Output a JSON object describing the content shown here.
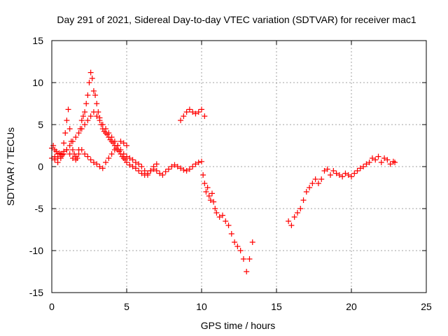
{
  "chart_data": {
    "type": "scatter",
    "title": "Day 291 of 2021, Sidereal Day-to-day VTEC variation (SDTVAR) for receiver mac1",
    "xlabel": "GPS time / hours",
    "ylabel": "SDTVAR / TECUs",
    "xlim": [
      0,
      25
    ],
    "ylim": [
      -15,
      15
    ],
    "xticks": [
      0,
      5,
      10,
      15,
      20,
      25
    ],
    "yticks": [
      -15,
      -10,
      -5,
      0,
      5,
      10,
      15
    ],
    "xtick_labels": [
      "0",
      "5",
      "10",
      "15",
      "20",
      "25"
    ],
    "ytick_labels": [
      "-15",
      "-10",
      "-5",
      "0",
      "5",
      "10",
      "15"
    ],
    "grid": true,
    "marker": "+",
    "color": "#ff0000",
    "series": [
      {
        "name": "mac1",
        "x": [
          0.0,
          0.1,
          0.2,
          0.3,
          0.4,
          0.5,
          0.6,
          0.7,
          0.8,
          0.9,
          1.0,
          1.1,
          1.2,
          1.3,
          1.4,
          1.5,
          1.6,
          1.7,
          1.8,
          1.9,
          2.0,
          2.1,
          2.2,
          2.3,
          2.4,
          2.5,
          2.6,
          2.7,
          2.8,
          2.9,
          3.0,
          3.1,
          3.2,
          3.3,
          3.4,
          3.5,
          3.6,
          3.7,
          3.8,
          3.9,
          4.0,
          4.1,
          4.2,
          4.3,
          4.4,
          4.5,
          4.6,
          4.7,
          4.8,
          4.9,
          5.0,
          5.2,
          5.4,
          5.6,
          5.8,
          6.0,
          6.2,
          6.4,
          6.6,
          6.8,
          7.0,
          7.2,
          7.4,
          7.6,
          7.8,
          8.0,
          8.2,
          8.4,
          8.6,
          8.8,
          9.0,
          9.2,
          9.4,
          9.6,
          9.8,
          10.0,
          10.1,
          10.2,
          10.3,
          10.4,
          10.5,
          10.6,
          10.7,
          10.8,
          10.9,
          11.0,
          11.2,
          11.4,
          11.6,
          11.8,
          12.0,
          12.2,
          12.4,
          12.6,
          12.8,
          13.0,
          13.2,
          13.4,
          0.0,
          0.2,
          0.4,
          0.6,
          0.8,
          1.0,
          1.2,
          1.4,
          1.6,
          1.8,
          2.0,
          2.2,
          2.4,
          2.6,
          2.8,
          3.0,
          3.2,
          3.4,
          3.6,
          3.8,
          4.0,
          4.2,
          4.4,
          4.6,
          4.8,
          5.0,
          5.2,
          5.4,
          5.6,
          5.8,
          6.0,
          6.2,
          6.4,
          6.6,
          6.8,
          7.0,
          0.2,
          0.4,
          0.6,
          0.8,
          1.0,
          1.2,
          1.4,
          1.6,
          1.8,
          2.0,
          2.2,
          2.4,
          2.6,
          2.8,
          3.0,
          3.2,
          3.4,
          3.6,
          3.8,
          4.0,
          4.2,
          4.4,
          4.6,
          4.8,
          5.0,
          8.6,
          8.8,
          9.0,
          9.2,
          9.4,
          9.6,
          9.8,
          10.0,
          10.2,
          15.8,
          16.0,
          16.2,
          16.4,
          16.6,
          16.8,
          17.0,
          17.2,
          17.4,
          17.6,
          17.8,
          18.0,
          18.2,
          18.4,
          18.6,
          18.8,
          19.0,
          19.2,
          19.4,
          19.6,
          19.8,
          20.0,
          20.2,
          20.4,
          20.6,
          20.8,
          21.0,
          21.2,
          21.4,
          21.6,
          21.8,
          22.0,
          22.2,
          22.4,
          22.6,
          22.8,
          22.9
        ],
        "y": [
          2.2,
          2.5,
          2.0,
          1.8,
          1.5,
          1.6,
          1.2,
          1.4,
          2.8,
          4.0,
          5.5,
          6.8,
          4.5,
          3.0,
          2.0,
          1.5,
          1.2,
          1.0,
          2.0,
          4.5,
          5.5,
          6.0,
          6.5,
          7.5,
          8.5,
          10.0,
          11.2,
          10.5,
          9.0,
          8.5,
          7.5,
          6.5,
          5.8,
          5.0,
          4.5,
          4.2,
          4.0,
          3.8,
          3.5,
          3.2,
          3.0,
          2.8,
          2.5,
          2.2,
          2.0,
          1.8,
          1.5,
          1.2,
          1.0,
          0.8,
          0.5,
          0.2,
          0.0,
          -0.2,
          -0.5,
          -0.8,
          -1.0,
          -0.8,
          -0.5,
          -0.3,
          -0.5,
          -0.8,
          -1.0,
          -0.6,
          -0.3,
          0.0,
          0.2,
          0.0,
          -0.2,
          -0.4,
          -0.5,
          -0.3,
          0.0,
          0.3,
          0.5,
          0.6,
          -1.0,
          -2.0,
          -3.0,
          -2.5,
          -3.5,
          -4.0,
          -3.2,
          -4.2,
          -5.0,
          -5.5,
          -6.0,
          -5.8,
          -6.5,
          -7.0,
          -8.0,
          -9.0,
          -9.5,
          -10.0,
          -11.0,
          -12.5,
          -11.0,
          -9.0,
          1.0,
          0.8,
          0.5,
          1.0,
          1.5,
          2.0,
          2.5,
          3.0,
          3.5,
          4.0,
          4.5,
          5.0,
          5.5,
          6.0,
          6.5,
          6.0,
          5.5,
          5.0,
          4.5,
          4.0,
          3.5,
          3.0,
          2.5,
          2.0,
          1.5,
          1.2,
          1.0,
          0.8,
          0.5,
          0.3,
          0.0,
          -0.5,
          -1.0,
          -0.5,
          0.0,
          0.3,
          1.2,
          1.0,
          1.5,
          1.8,
          2.0,
          1.5,
          1.0,
          0.8,
          1.5,
          2.0,
          1.5,
          1.2,
          0.8,
          0.5,
          0.3,
          0.0,
          -0.2,
          0.5,
          1.0,
          1.5,
          2.0,
          2.5,
          3.0,
          2.8,
          2.5,
          5.5,
          6.0,
          6.5,
          6.8,
          6.5,
          6.3,
          6.5,
          6.8,
          6.0,
          -6.5,
          -7.0,
          -6.0,
          -5.5,
          -5.0,
          -4.0,
          -3.0,
          -2.5,
          -2.0,
          -1.5,
          -2.0,
          -1.5,
          -0.5,
          -0.3,
          -1.0,
          -0.5,
          -0.8,
          -1.0,
          -1.2,
          -0.8,
          -1.0,
          -1.2,
          -0.8,
          -0.5,
          -0.2,
          0.0,
          0.3,
          0.5,
          1.0,
          0.8,
          1.2,
          0.5,
          1.0,
          0.8,
          0.3,
          0.6,
          0.5
        ]
      }
    ]
  }
}
